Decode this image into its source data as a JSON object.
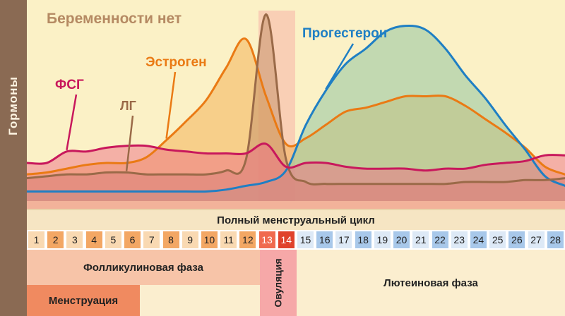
{
  "axis_title": "Гормоны",
  "headline": "Беременности нет",
  "cycle_title": "Полный менструальный цикл",
  "labels": {
    "fsh": "ФСГ",
    "lh": "ЛГ",
    "estrogen": "Эстроген",
    "progesterone": "Прогестерон"
  },
  "phases": {
    "follicular": "Фолликулиновая фаза",
    "menstruation": "Менструация",
    "ovulation": "Овуляция",
    "luteal": "Лютеиновая фаза"
  },
  "days": [
    "1",
    "2",
    "3",
    "4",
    "5",
    "6",
    "7",
    "8",
    "9",
    "10",
    "11",
    "12",
    "13",
    "14",
    "15",
    "16",
    "17",
    "18",
    "19",
    "20",
    "21",
    "22",
    "23",
    "24",
    "25",
    "26",
    "27",
    "28"
  ],
  "colors": {
    "fsh": "#c8185c",
    "lh": "#9a6a48",
    "estrogen": "#ea7a14",
    "progesterone": "#1f7fc4",
    "menstruation": "#f08a60",
    "follicular": "#f7c4a8",
    "ovulation": "#f6a8a8",
    "luteal": "#fbeecf",
    "sidebar": "#8a6a53"
  },
  "chart_data": {
    "type": "line",
    "x": [
      1,
      2,
      3,
      4,
      5,
      6,
      7,
      8,
      9,
      10,
      11,
      12,
      13,
      14,
      15,
      16,
      17,
      18,
      19,
      20,
      21,
      22,
      23,
      24,
      25,
      26,
      27,
      28
    ],
    "ylim": [
      0,
      100
    ],
    "series": [
      {
        "name": "ФСГ",
        "key": "fsh",
        "values": [
          20,
          20,
          26,
          26,
          28,
          29,
          29,
          27,
          26,
          25,
          25,
          25,
          30,
          18,
          20,
          20,
          18,
          17,
          17,
          17,
          16,
          17,
          17,
          19,
          20,
          21,
          24,
          24
        ]
      },
      {
        "name": "ЛГ",
        "key": "lh",
        "values": [
          12,
          13,
          14,
          14,
          15,
          15,
          14,
          14,
          14,
          14,
          16,
          22,
          98,
          22,
          10,
          9,
          9,
          9,
          9,
          9,
          9,
          9,
          10,
          10,
          10,
          11,
          11,
          12
        ]
      },
      {
        "name": "Эстроген",
        "key": "estrogen",
        "values": [
          14,
          15,
          17,
          19,
          20,
          20,
          23,
          32,
          42,
          53,
          70,
          85,
          55,
          30,
          33,
          40,
          47,
          49,
          52,
          55,
          55,
          55,
          50,
          43,
          36,
          28,
          18,
          14
        ]
      },
      {
        "name": "Прогестерон",
        "key": "progesterone",
        "values": [
          5,
          5,
          5,
          5,
          5,
          5,
          5,
          5,
          5,
          5,
          6,
          8,
          10,
          16,
          40,
          58,
          72,
          80,
          89,
          92,
          90,
          80,
          66,
          54,
          40,
          27,
          13,
          8
        ]
      }
    ]
  }
}
